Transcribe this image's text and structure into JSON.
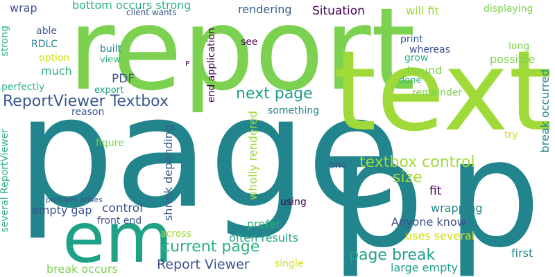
{
  "background": "#ffffff",
  "palette": [
    "#22848c",
    "#7cd250",
    "#a0da39",
    "#1fa188",
    "#3b528b",
    "#38598c",
    "#440154",
    "#d2e21b",
    "#2db27d"
  ],
  "words": [
    {
      "text": "report",
      "color": "#7cd250"
    },
    {
      "text": "page",
      "color": "#22848c"
    },
    {
      "text": "text",
      "color": "#a0da39"
    },
    {
      "text": "p",
      "color": "#22848c"
    },
    {
      "text": "p",
      "color": "#22848c"
    },
    {
      "text": "em",
      "color": "#1fa188"
    },
    {
      "text": "textbox control",
      "color": "#a0da39"
    },
    {
      "text": "ReportViewer Textbox",
      "color": "#38598c"
    },
    {
      "text": "next page",
      "color": "#1fa188"
    },
    {
      "text": "page break",
      "color": "#1fa188"
    },
    {
      "text": "current page",
      "color": "#2db27d"
    },
    {
      "text": "Report Viewer",
      "color": "#3b528b"
    },
    {
      "text": "Situation",
      "color": "#440154"
    },
    {
      "text": "rendering",
      "color": "#38598c"
    },
    {
      "text": "bottom occurs strong",
      "color": "#2db27d"
    },
    {
      "text": "wrap",
      "color": "#3b528b"
    },
    {
      "text": "client wants",
      "color": "#38598c"
    },
    {
      "text": "will fit",
      "color": "#a0da39"
    },
    {
      "text": "displaying",
      "color": "#7cd250"
    },
    {
      "text": "able",
      "color": "#38598c"
    },
    {
      "text": "RDLC",
      "color": "#22848c"
    },
    {
      "text": "option",
      "color": "#d2e21b"
    },
    {
      "text": "much",
      "color": "#2db27d"
    },
    {
      "text": "perfectly",
      "color": "#2db27d"
    },
    {
      "text": "built",
      "color": "#22848c"
    },
    {
      "text": "view",
      "color": "#2db27d"
    },
    {
      "text": "PDF",
      "color": "#3b528b"
    },
    {
      "text": "export",
      "color": "#1fa188"
    },
    {
      "text": "reason",
      "color": "#38598c"
    },
    {
      "text": "see",
      "color": "#440154"
    },
    {
      "text": "print",
      "color": "#38598c"
    },
    {
      "text": "whereas",
      "color": "#3b528b"
    },
    {
      "text": "grow",
      "color": "#2db27d"
    },
    {
      "text": "bound",
      "color": "#7cd250"
    },
    {
      "text": "done",
      "color": "#2db27d"
    },
    {
      "text": "long",
      "color": "#7cd250"
    },
    {
      "text": "possible",
      "color": "#7cd250"
    },
    {
      "text": "remainder",
      "color": "#7cd250"
    },
    {
      "text": "something",
      "color": "#22848c"
    },
    {
      "text": "try",
      "color": "#d2e21b"
    },
    {
      "text": "figure",
      "color": "#7cd250"
    },
    {
      "text": "one",
      "color": "#3b528b"
    },
    {
      "text": "size",
      "color": "#a0da39"
    },
    {
      "text": "fit",
      "color": "#440154"
    },
    {
      "text": "wrapping",
      "color": "#22848c"
    },
    {
      "text": "Anyone know",
      "color": "#3b528b"
    },
    {
      "text": "prefer",
      "color": "#2db27d"
    },
    {
      "text": "often results",
      "color": "#1fa188"
    },
    {
      "text": "uses several",
      "color": "#d2e21b"
    },
    {
      "text": "first",
      "color": "#22848c"
    },
    {
      "text": "large empty",
      "color": "#1fa188"
    },
    {
      "text": "single",
      "color": "#d2e21b"
    },
    {
      "text": "using",
      "color": "#440154"
    },
    {
      "text": "across",
      "color": "#a0da39"
    },
    {
      "text": "problem arises",
      "color": "#3b528b"
    },
    {
      "text": "empty gap",
      "color": "#3b528b"
    },
    {
      "text": "control",
      "color": "#3b528b"
    },
    {
      "text": "front end",
      "color": "#3b528b"
    },
    {
      "text": "break occurs",
      "color": "#7cd250"
    },
    {
      "text": "P",
      "color": "#440154"
    },
    {
      "text": "strong",
      "color": "#2db27d"
    },
    {
      "text": "several ReportViewer",
      "color": "#2db27d"
    },
    {
      "text": "end application",
      "color": "#440154"
    },
    {
      "text": "shrink depending",
      "color": "#38598c"
    },
    {
      "text": "wholly rendered",
      "color": "#a0da39"
    },
    {
      "text": "break occurred",
      "color": "#22848c"
    }
  ]
}
